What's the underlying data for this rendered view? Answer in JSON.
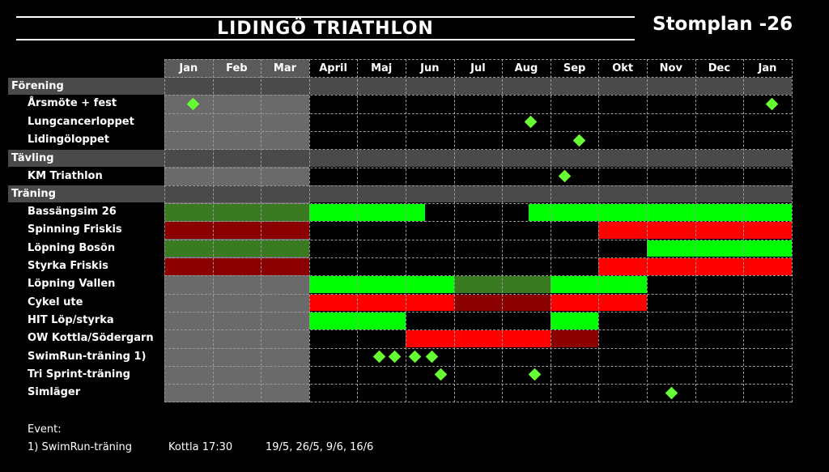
{
  "header": {
    "brand": "LIDINGÖ TRIATHLON",
    "title": "Stomplan -26"
  },
  "months": [
    "Jan",
    "Feb",
    "Mar",
    "April",
    "Maj",
    "Jun",
    "Jul",
    "Aug",
    "Sep",
    "Okt",
    "Nov",
    "Dec",
    "Jan"
  ],
  "colors": {
    "bright_green": "#00ff00",
    "dark_green": "#3a7a20",
    "bright_red": "#ff0000",
    "dark_red": "#8b0000",
    "grey_block": "#6a6a6a",
    "section_bar": "#4a4a4a",
    "diamond": "#66ff33"
  },
  "rows": [
    {
      "type": "section",
      "label": "Förening"
    },
    {
      "type": "row",
      "label": "Årsmöte + fest",
      "segments": [],
      "diamonds": [
        0.6,
        12.6
      ]
    },
    {
      "type": "row",
      "label": "Lungcancerloppet",
      "segments": [],
      "diamonds": [
        7.6
      ]
    },
    {
      "type": "row",
      "label": "Lidingöloppet",
      "segments": [],
      "diamonds": [
        8.6
      ]
    },
    {
      "type": "section",
      "label": "Tävling"
    },
    {
      "type": "row",
      "label": "KM Triathlon",
      "segments": [],
      "diamonds": [
        8.3
      ]
    },
    {
      "type": "section",
      "label": "Träning"
    },
    {
      "type": "row",
      "label": "Bassängsim 26",
      "segments": [
        {
          "from": 0,
          "to": 3,
          "color": "dark_green"
        },
        {
          "from": 3,
          "to": 5.4,
          "color": "bright_green"
        },
        {
          "from": 7.55,
          "to": 13,
          "color": "bright_green"
        }
      ],
      "diamonds": []
    },
    {
      "type": "row",
      "label": "Spinning Friskis",
      "segments": [
        {
          "from": 0,
          "to": 3,
          "color": "dark_red"
        },
        {
          "from": 9,
          "to": 13,
          "color": "bright_red"
        }
      ],
      "diamonds": []
    },
    {
      "type": "row",
      "label": "Löpning Bosön",
      "segments": [
        {
          "from": 0,
          "to": 3,
          "color": "dark_green"
        },
        {
          "from": 10,
          "to": 13,
          "color": "bright_green"
        }
      ],
      "diamonds": []
    },
    {
      "type": "row",
      "label": "Styrka Friskis",
      "segments": [
        {
          "from": 0,
          "to": 3,
          "color": "dark_red"
        },
        {
          "from": 9,
          "to": 13,
          "color": "bright_red"
        }
      ],
      "diamonds": []
    },
    {
      "type": "row",
      "label": "Löpning Vallen",
      "segments": [
        {
          "from": 3,
          "to": 6,
          "color": "bright_green"
        },
        {
          "from": 6,
          "to": 8,
          "color": "dark_green"
        },
        {
          "from": 8,
          "to": 10,
          "color": "bright_green"
        }
      ],
      "diamonds": []
    },
    {
      "type": "row",
      "label": "Cykel ute",
      "segments": [
        {
          "from": 3,
          "to": 6,
          "color": "bright_red"
        },
        {
          "from": 6,
          "to": 8,
          "color": "dark_red"
        },
        {
          "from": 8,
          "to": 10,
          "color": "bright_red"
        }
      ],
      "diamonds": []
    },
    {
      "type": "row",
      "label": "HIT Löp/styrka",
      "segments": [
        {
          "from": 3,
          "to": 5,
          "color": "bright_green"
        },
        {
          "from": 8,
          "to": 9,
          "color": "bright_green"
        }
      ],
      "diamonds": []
    },
    {
      "type": "row",
      "label": "OW Kottla/Södergarn",
      "segments": [
        {
          "from": 5,
          "to": 8,
          "color": "bright_red"
        },
        {
          "from": 8,
          "to": 9,
          "color": "dark_red"
        }
      ],
      "diamonds": []
    },
    {
      "type": "row",
      "label": "SwimRun-träning 1)",
      "segments": [],
      "diamonds": [
        4.45,
        4.78,
        5.2,
        5.55
      ]
    },
    {
      "type": "row",
      "label": "Tri Sprint-träning",
      "segments": [],
      "diamonds": [
        5.73,
        7.68
      ]
    },
    {
      "type": "row",
      "label": "Simläger",
      "segments": [],
      "diamonds": [
        10.52
      ]
    }
  ],
  "footer": {
    "title": "Event:",
    "event_name": "1) SwimRun-träning",
    "location_time": "Kottla 17:30",
    "dates": "19/5, 26/5, 9/6, 16/6"
  }
}
